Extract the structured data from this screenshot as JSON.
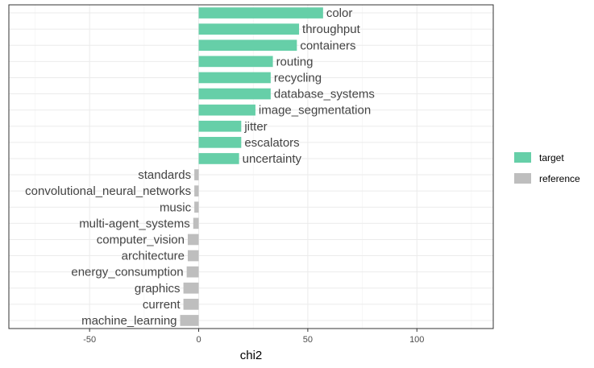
{
  "chart_data": {
    "type": "bar",
    "orientation": "horizontal",
    "xlabel": "chi2",
    "ylabel": "",
    "xlim": [
      -87,
      135
    ],
    "xticks": [
      -50,
      0,
      50,
      100
    ],
    "xtick_labels": [
      "-50",
      "0",
      "50",
      "100"
    ],
    "grid": true,
    "legend_position": "right",
    "legend": [
      {
        "name": "target",
        "color": "#66CFA8"
      },
      {
        "name": "reference",
        "color": "#BEBEBE"
      }
    ],
    "bars": [
      {
        "label": "color",
        "value": 57,
        "group": "target"
      },
      {
        "label": "throughput",
        "value": 46,
        "group": "target"
      },
      {
        "label": "containers",
        "value": 45,
        "group": "target"
      },
      {
        "label": "routing",
        "value": 34,
        "group": "target"
      },
      {
        "label": "recycling",
        "value": 33,
        "group": "target"
      },
      {
        "label": "database_systems",
        "value": 33,
        "group": "target"
      },
      {
        "label": "image_segmentation",
        "value": 26,
        "group": "target"
      },
      {
        "label": "jitter",
        "value": 19.5,
        "group": "target"
      },
      {
        "label": "escalators",
        "value": 19.5,
        "group": "target"
      },
      {
        "label": "uncertainty",
        "value": 18.5,
        "group": "target"
      },
      {
        "label": "standards",
        "value": -2,
        "group": "reference"
      },
      {
        "label": "convolutional_neural_networks",
        "value": -2,
        "group": "reference"
      },
      {
        "label": "music",
        "value": -2,
        "group": "reference"
      },
      {
        "label": "multi-agent_systems",
        "value": -2.5,
        "group": "reference"
      },
      {
        "label": "computer_vision",
        "value": -5,
        "group": "reference"
      },
      {
        "label": "architecture",
        "value": -5,
        "group": "reference"
      },
      {
        "label": "energy_consumption",
        "value": -5.5,
        "group": "reference"
      },
      {
        "label": "graphics",
        "value": -7,
        "group": "reference"
      },
      {
        "label": "current",
        "value": -7,
        "group": "reference"
      },
      {
        "label": "machine_learning",
        "value": -8.5,
        "group": "reference"
      }
    ]
  }
}
